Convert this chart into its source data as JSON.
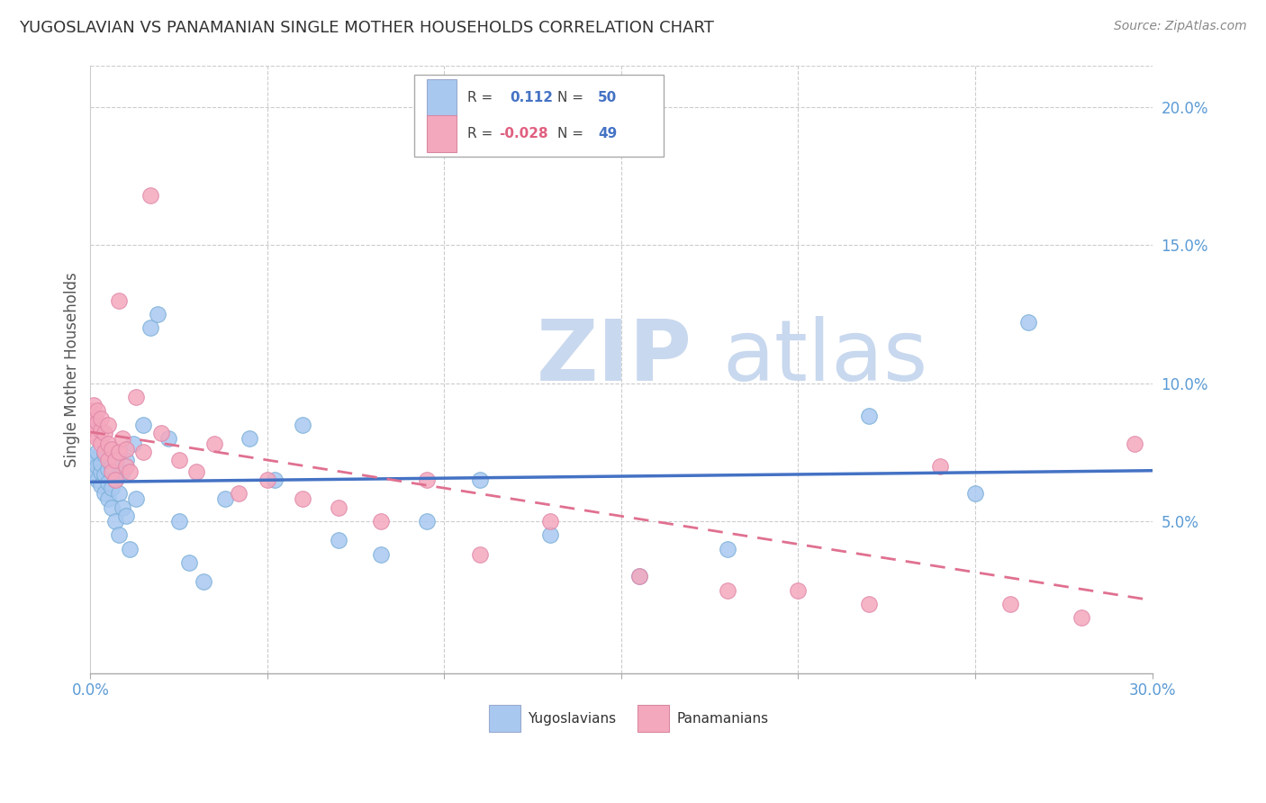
{
  "title": "YUGOSLAVIAN VS PANAMANIAN SINGLE MOTHER HOUSEHOLDS CORRELATION CHART",
  "source": "Source: ZipAtlas.com",
  "ylabel": "Single Mother Households",
  "xlim": [
    0.0,
    0.3
  ],
  "ylim": [
    -0.005,
    0.215
  ],
  "yug_R": 0.112,
  "yug_N": 50,
  "pan_R": -0.028,
  "pan_N": 49,
  "yug_color": "#A8C8F0",
  "pan_color": "#F4A8BE",
  "yug_line_color": "#4472C4",
  "pan_line_color": "#E07090",
  "watermark_zip": "ZIP",
  "watermark_atlas": "atlas",
  "watermark_color": "#C8D8EE",
  "legend_yug_label": "Yugoslavians",
  "legend_pan_label": "Panamanians",
  "yug_x": [
    0.0,
    0.001,
    0.001,
    0.002,
    0.002,
    0.002,
    0.003,
    0.003,
    0.003,
    0.004,
    0.004,
    0.004,
    0.005,
    0.005,
    0.005,
    0.006,
    0.006,
    0.006,
    0.007,
    0.007,
    0.008,
    0.008,
    0.009,
    0.009,
    0.01,
    0.01,
    0.011,
    0.012,
    0.013,
    0.015,
    0.017,
    0.019,
    0.022,
    0.025,
    0.028,
    0.032,
    0.038,
    0.045,
    0.052,
    0.06,
    0.07,
    0.082,
    0.095,
    0.11,
    0.13,
    0.155,
    0.18,
    0.22,
    0.25,
    0.265
  ],
  "yug_y": [
    0.073,
    0.068,
    0.072,
    0.065,
    0.07,
    0.075,
    0.063,
    0.068,
    0.071,
    0.06,
    0.067,
    0.074,
    0.058,
    0.064,
    0.069,
    0.055,
    0.062,
    0.07,
    0.05,
    0.065,
    0.045,
    0.06,
    0.068,
    0.055,
    0.072,
    0.052,
    0.04,
    0.078,
    0.058,
    0.085,
    0.12,
    0.125,
    0.08,
    0.05,
    0.035,
    0.028,
    0.058,
    0.08,
    0.065,
    0.085,
    0.043,
    0.038,
    0.05,
    0.065,
    0.045,
    0.03,
    0.04,
    0.088,
    0.06,
    0.122
  ],
  "pan_x": [
    0.0,
    0.0,
    0.001,
    0.001,
    0.001,
    0.002,
    0.002,
    0.002,
    0.003,
    0.003,
    0.003,
    0.004,
    0.004,
    0.005,
    0.005,
    0.005,
    0.006,
    0.006,
    0.007,
    0.007,
    0.008,
    0.008,
    0.009,
    0.01,
    0.01,
    0.011,
    0.013,
    0.015,
    0.017,
    0.02,
    0.025,
    0.03,
    0.035,
    0.042,
    0.05,
    0.06,
    0.07,
    0.082,
    0.095,
    0.11,
    0.13,
    0.155,
    0.18,
    0.2,
    0.22,
    0.24,
    0.26,
    0.28,
    0.295
  ],
  "pan_y": [
    0.085,
    0.09,
    0.088,
    0.082,
    0.092,
    0.08,
    0.086,
    0.09,
    0.078,
    0.083,
    0.087,
    0.075,
    0.082,
    0.072,
    0.078,
    0.085,
    0.068,
    0.076,
    0.065,
    0.072,
    0.13,
    0.075,
    0.08,
    0.07,
    0.076,
    0.068,
    0.095,
    0.075,
    0.168,
    0.082,
    0.072,
    0.068,
    0.078,
    0.06,
    0.065,
    0.058,
    0.055,
    0.05,
    0.065,
    0.038,
    0.05,
    0.03,
    0.025,
    0.025,
    0.02,
    0.07,
    0.02,
    0.015,
    0.078
  ]
}
